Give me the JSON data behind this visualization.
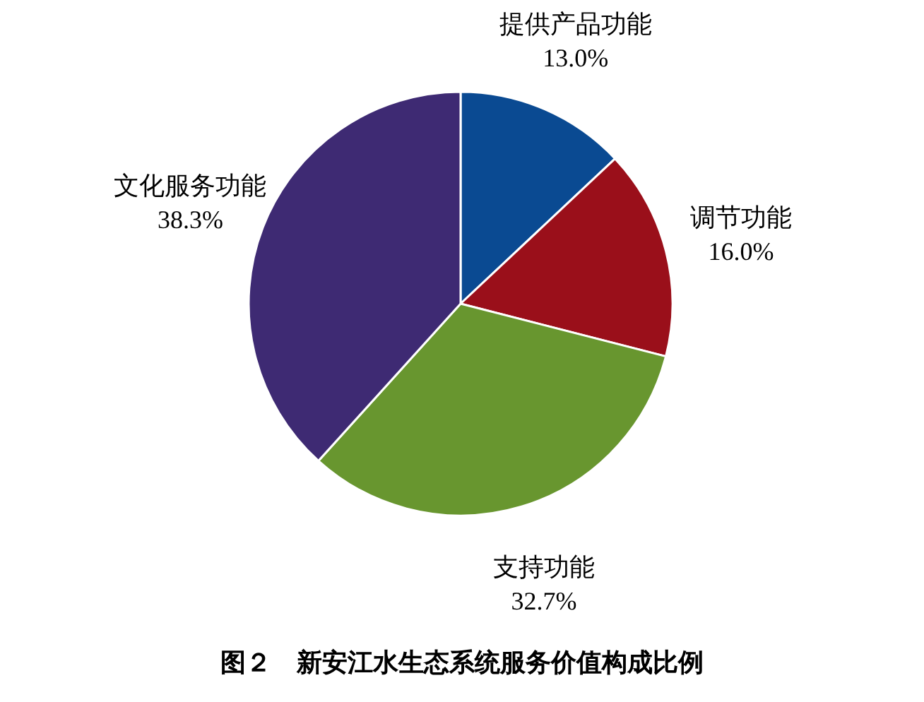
{
  "chart_data": {
    "type": "pie",
    "title": "图２　新安江水生态系统服务价值构成比例",
    "categories": [
      "提供产品功能",
      "调节功能",
      "支持功能",
      "文化服务功能"
    ],
    "values": [
      13.0,
      16.0,
      32.7,
      38.3
    ],
    "colors": [
      "#0a4a92",
      "#9a0f1a",
      "#68962f",
      "#3e2a73"
    ],
    "value_labels": [
      "13.0%",
      "16.0%",
      "32.7%",
      "38.3%"
    ]
  }
}
